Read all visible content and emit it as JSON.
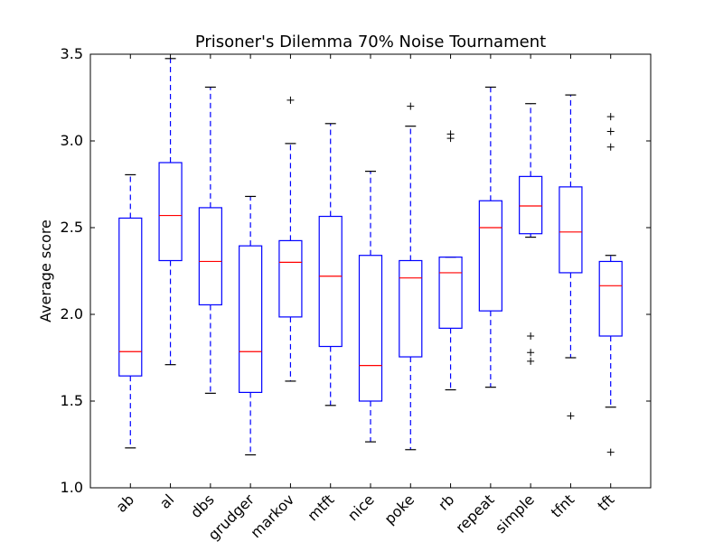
{
  "chart_data": {
    "type": "box",
    "title": "Prisoner's Dilemma 70% Noise Tournament",
    "xlabel": "",
    "ylabel": "Average score",
    "ylim": [
      1.0,
      3.5
    ],
    "yticks": [
      "1.0",
      "1.5",
      "2.0",
      "2.5",
      "3.0",
      "3.5"
    ],
    "grid": false,
    "colors": {
      "box": "#0000ff",
      "median": "#ff0000",
      "whisker": "#0000ff",
      "flier": "#000000"
    },
    "categories": [
      "ab",
      "al",
      "dbs",
      "grudger",
      "markov",
      "mtft",
      "nice",
      "poke",
      "rb",
      "repeat",
      "simple",
      "tfnt",
      "tft"
    ],
    "boxes": [
      {
        "label": "ab",
        "whislo": 1.23,
        "q1": 1.645,
        "med": 1.785,
        "q3": 2.555,
        "whishi": 2.805,
        "fliers": []
      },
      {
        "label": "al",
        "whislo": 1.71,
        "q1": 2.31,
        "med": 2.57,
        "q3": 2.875,
        "whishi": 3.475,
        "fliers": []
      },
      {
        "label": "dbs",
        "whislo": 1.545,
        "q1": 2.055,
        "med": 2.305,
        "q3": 2.615,
        "whishi": 3.31,
        "fliers": []
      },
      {
        "label": "grudger",
        "whislo": 1.19,
        "q1": 1.55,
        "med": 1.785,
        "q3": 2.395,
        "whishi": 2.68,
        "fliers": []
      },
      {
        "label": "markov",
        "whislo": 1.615,
        "q1": 1.985,
        "med": 2.3,
        "q3": 2.425,
        "whishi": 2.985,
        "fliers": [
          3.235
        ]
      },
      {
        "label": "mtft",
        "whislo": 1.475,
        "q1": 1.815,
        "med": 2.22,
        "q3": 2.565,
        "whishi": 3.1,
        "fliers": []
      },
      {
        "label": "nice",
        "whislo": 1.265,
        "q1": 1.5,
        "med": 1.705,
        "q3": 2.34,
        "whishi": 2.825,
        "fliers": []
      },
      {
        "label": "poke",
        "whislo": 1.22,
        "q1": 1.755,
        "med": 2.21,
        "q3": 2.31,
        "whishi": 3.085,
        "fliers": [
          3.2
        ]
      },
      {
        "label": "rb",
        "whislo": 1.565,
        "q1": 1.92,
        "med": 2.24,
        "q3": 2.33,
        "whishi": 2.33,
        "fliers": [
          3.015,
          3.04
        ]
      },
      {
        "label": "repeat",
        "whislo": 1.58,
        "q1": 2.02,
        "med": 2.5,
        "q3": 2.655,
        "whishi": 3.31,
        "fliers": []
      },
      {
        "label": "simple",
        "whislo": 2.445,
        "q1": 2.465,
        "med": 2.625,
        "q3": 2.795,
        "whishi": 3.215,
        "fliers": [
          1.73,
          1.78,
          1.875
        ]
      },
      {
        "label": "tfnt",
        "whislo": 1.75,
        "q1": 2.24,
        "med": 2.475,
        "q3": 2.735,
        "whishi": 3.265,
        "fliers": [
          1.415
        ]
      },
      {
        "label": "tft",
        "whislo": 1.465,
        "q1": 1.875,
        "med": 2.165,
        "q3": 2.305,
        "whishi": 2.34,
        "fliers": [
          1.205,
          2.965,
          3.055,
          3.14
        ]
      }
    ]
  }
}
